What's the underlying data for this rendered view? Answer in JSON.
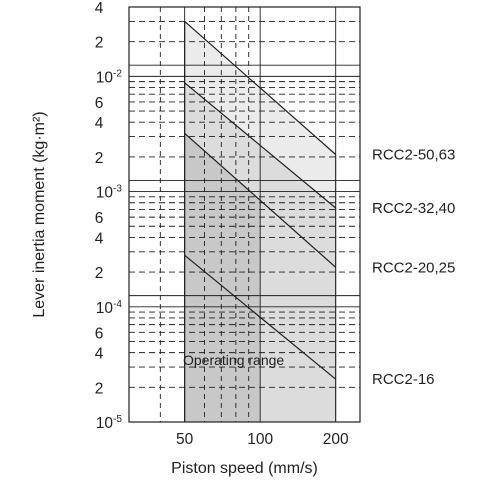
{
  "chart_data": {
    "type": "line",
    "title": "",
    "xlabel": "Piston speed (mm/s)",
    "ylabel": "Lever inertia moment (kg·m²)",
    "x_scale": "log",
    "y_scale": "log",
    "xlim": [
      30,
      250
    ],
    "ylim": [
      1e-05,
      0.04
    ],
    "x_ticks": [
      {
        "value": 50,
        "label": "50"
      },
      {
        "value": 100,
        "label": "100"
      },
      {
        "value": 200,
        "label": "200"
      }
    ],
    "y_ticks": [
      {
        "value": 0.04,
        "mant": "4",
        "exp": ""
      },
      {
        "value": 0.02,
        "mant": "2",
        "exp": ""
      },
      {
        "value": 0.01,
        "mant": "10",
        "exp": "-2"
      },
      {
        "value": 0.006,
        "mant": "6",
        "exp": ""
      },
      {
        "value": 0.004,
        "mant": "4",
        "exp": ""
      },
      {
        "value": 0.002,
        "mant": "2",
        "exp": ""
      },
      {
        "value": 0.001,
        "mant": "10",
        "exp": "-3"
      },
      {
        "value": 0.0006,
        "mant": "6",
        "exp": ""
      },
      {
        "value": 0.0004,
        "mant": "4",
        "exp": ""
      },
      {
        "value": 0.0002,
        "mant": "2",
        "exp": ""
      },
      {
        "value": 0.0001,
        "mant": "10",
        "exp": "-4"
      },
      {
        "value": 6e-05,
        "mant": "6",
        "exp": ""
      },
      {
        "value": 4e-05,
        "mant": "4",
        "exp": ""
      },
      {
        "value": 2e-05,
        "mant": "2",
        "exp": ""
      },
      {
        "value": 1e-05,
        "mant": "10",
        "exp": "-5"
      }
    ],
    "grid": true,
    "operating_range": {
      "label": "Operating range",
      "x": [
        50,
        200
      ],
      "fill_light": "#ebebeb",
      "fill_mid": "#dcdcdc",
      "fill_dark": "#c8c8c8"
    },
    "series": [
      {
        "name": "RCC2-50,63",
        "x": [
          50,
          200
        ],
        "y": [
          0.03,
          0.0021
        ]
      },
      {
        "name": "RCC2-32,40",
        "x": [
          50,
          200
        ],
        "y": [
          0.0088,
          0.00072
        ]
      },
      {
        "name": "RCC2-20,25",
        "x": [
          50,
          200
        ],
        "y": [
          0.0032,
          0.00022
        ]
      },
      {
        "name": "RCC2-16",
        "x": [
          50,
          200
        ],
        "y": [
          0.00028,
          2.35e-05
        ]
      }
    ]
  }
}
